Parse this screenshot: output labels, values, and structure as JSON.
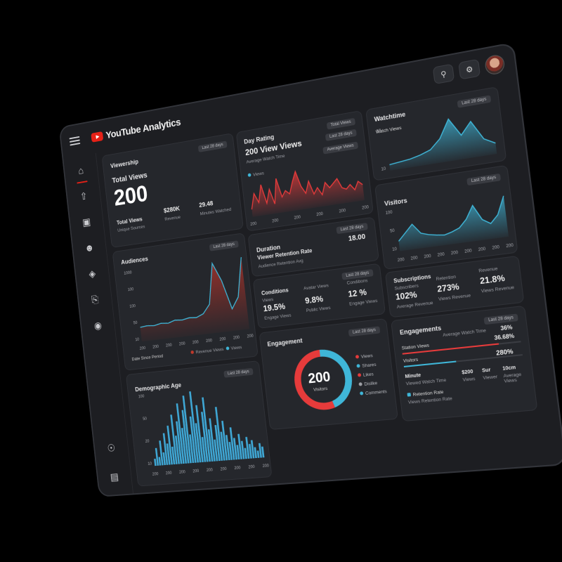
{
  "app": {
    "title": "YouTube Analytics"
  },
  "header": {
    "search_icon": "search-icon",
    "settings_icon": "gear-icon"
  },
  "sidebar": {
    "items": [
      "home-icon",
      "upload-icon",
      "content-icon",
      "user-icon",
      "monetization-icon",
      "copyright-icon",
      "audience-icon"
    ],
    "bottom": [
      "globe-icon",
      "feedback-icon"
    ]
  },
  "viewership": {
    "title": "Viewership",
    "tag": "Last 28 days",
    "subtitle": "Total Views",
    "value": "200",
    "footer_label": "Total Views",
    "footer_sub": "Unique Sources",
    "stat1_value": "$280K",
    "stat1_label": "Revenue",
    "stat2_value": "29.48",
    "stat2_label": "Minutes Watched"
  },
  "day_rating": {
    "title": "Day Rating",
    "headline": "200 View Views",
    "subtitle": "Average Watch Time",
    "tag1": "Total Views",
    "tag2": "Last 28 days",
    "tag3": "Average Views",
    "legend": "Views",
    "x_ticks": [
      "200",
      "200",
      "200",
      "200",
      "200",
      "200"
    ]
  },
  "watchtime": {
    "title": "Watchtime",
    "tag": "Last 28 days",
    "legend": "Watch Views",
    "y_ticks": [
      "50",
      "10"
    ],
    "x_ticks": [
      "200",
      "200",
      "200"
    ]
  },
  "audience": {
    "title": "Audiences",
    "tag": "Last 28 days",
    "y_ticks": [
      "1000",
      "100",
      "100",
      "50",
      "10"
    ],
    "x_ticks": [
      "200",
      "200",
      "200",
      "200",
      "200",
      "200",
      "200",
      "200",
      "200"
    ],
    "footer": "Date Since Period",
    "legend": [
      {
        "name": "Revenue Views",
        "color": "#c0392b"
      },
      {
        "name": "Views",
        "color": "#3fb6d8"
      }
    ]
  },
  "retention": {
    "title": "Duration",
    "label": "Viewer Retention Rate",
    "sub": "Audience Retention Avg",
    "value": "18.00",
    "tag": "Last 28 days"
  },
  "subscribers": {
    "tag": "Last 28 days",
    "cols": [
      {
        "title": "Conditions",
        "label": "Views",
        "value": "19.5%",
        "sub": "Engage Views"
      },
      {
        "title": "",
        "label": "Avatar Views",
        "value": "9.8%",
        "sub": "Public Views"
      },
      {
        "title": "",
        "label": "Conditions",
        "value": "12 %",
        "sub": "Engage Views"
      }
    ]
  },
  "visitors": {
    "title": "Visitors",
    "tag": "Last 28 days",
    "y_ticks": [
      "100",
      "50",
      "10"
    ],
    "x_ticks": [
      "200",
      "200",
      "200",
      "200",
      "200",
      "200",
      "200",
      "200",
      "200"
    ]
  },
  "subscriptions": {
    "title": "Subscriptions",
    "stats": [
      {
        "label": "Subscribers",
        "value": "102%",
        "sub": "Average Revenue"
      },
      {
        "label": "Retention",
        "value": "273%",
        "sub": "Views Revenue"
      },
      {
        "label": "Revenue",
        "value": "21.8%",
        "sub": "Views Revenue"
      }
    ]
  },
  "engagement": {
    "title": "Engagement",
    "tag": "Last 28 days",
    "center_value": "200",
    "center_label": "Visitors",
    "legend": [
      {
        "name": "Views",
        "color": "#e63b3b"
      },
      {
        "name": "Shares",
        "color": "#3fb6d8"
      },
      {
        "name": "Likes",
        "color": "#e63b3b"
      },
      {
        "name": "Dislike",
        "color": "#9ea0a6"
      },
      {
        "name": "Comments",
        "color": "#3fb6d8"
      }
    ]
  },
  "engagements_list": {
    "title": "Engagements",
    "tag": "Last 28 days",
    "rows": [
      {
        "label": "Station Views",
        "value": "36.68%",
        "aux": "Average Watch Time",
        "aux_value": "36%"
      },
      {
        "label": "Visitors",
        "value": "280%"
      }
    ],
    "bottom": {
      "title": "Minute",
      "sub": "Viewed Watch Time",
      "stat1": "$200",
      "stat1_sub": "Views",
      "stat2": "Sur",
      "stat2_sub": "Viewer",
      "stat3": "10cm",
      "stat3_sub": "Average Views",
      "legend": "Retention Rate",
      "legend_sub": "Views Retention Rate"
    }
  },
  "demographic": {
    "title": "Demographic Age",
    "tag": "Last 28 days",
    "y_ticks": [
      "100",
      "50",
      "20",
      "10"
    ],
    "x_ticks": [
      "200",
      "200",
      "200",
      "200",
      "200",
      "200",
      "200",
      "200",
      "200"
    ]
  },
  "chart_data": [
    {
      "type": "area",
      "title": "Audiences",
      "series": [
        {
          "name": "Revenue Views",
          "values": [
            20,
            21,
            20,
            22,
            21,
            24,
            23,
            25,
            24,
            28,
            40,
            95,
            70,
            30,
            45,
            98
          ]
        }
      ]
    },
    {
      "type": "line",
      "title": "Day Rating",
      "series": [
        {
          "name": "Views",
          "values": [
            20,
            60,
            35,
            80,
            30,
            65,
            25,
            90,
            40,
            55,
            45,
            75,
            100,
            60,
            40,
            70,
            35,
            50,
            30,
            60,
            45,
            55,
            65,
            40,
            35,
            45,
            30,
            50,
            40
          ]
        }
      ]
    },
    {
      "type": "area",
      "title": "Watchtime",
      "series": [
        {
          "name": "Watch Views",
          "values": [
            10,
            12,
            14,
            18,
            24,
            40,
            70,
            40,
            60,
            28,
            18
          ]
        }
      ]
    },
    {
      "type": "area",
      "title": "Visitors",
      "series": [
        {
          "name": "Visitors",
          "values": [
            20,
            35,
            50,
            30,
            25,
            22,
            20,
            24,
            30,
            45,
            70,
            40,
            30,
            45,
            80
          ]
        }
      ]
    },
    {
      "type": "bar",
      "title": "Demographic Age",
      "values": [
        10,
        25,
        12,
        35,
        18,
        45,
        30,
        55,
        25,
        70,
        40,
        60,
        85,
        50,
        75,
        95,
        40,
        65,
        100,
        55,
        80,
        35,
        70,
        90,
        45,
        60,
        30,
        50,
        75,
        40,
        55,
        35,
        25,
        45,
        30,
        20,
        35,
        25,
        15,
        30,
        20,
        25,
        15,
        10,
        20,
        15
      ]
    },
    {
      "type": "pie",
      "title": "Engagement",
      "categories": [
        "Shares",
        "Views"
      ],
      "values": [
        45,
        55
      ]
    }
  ]
}
